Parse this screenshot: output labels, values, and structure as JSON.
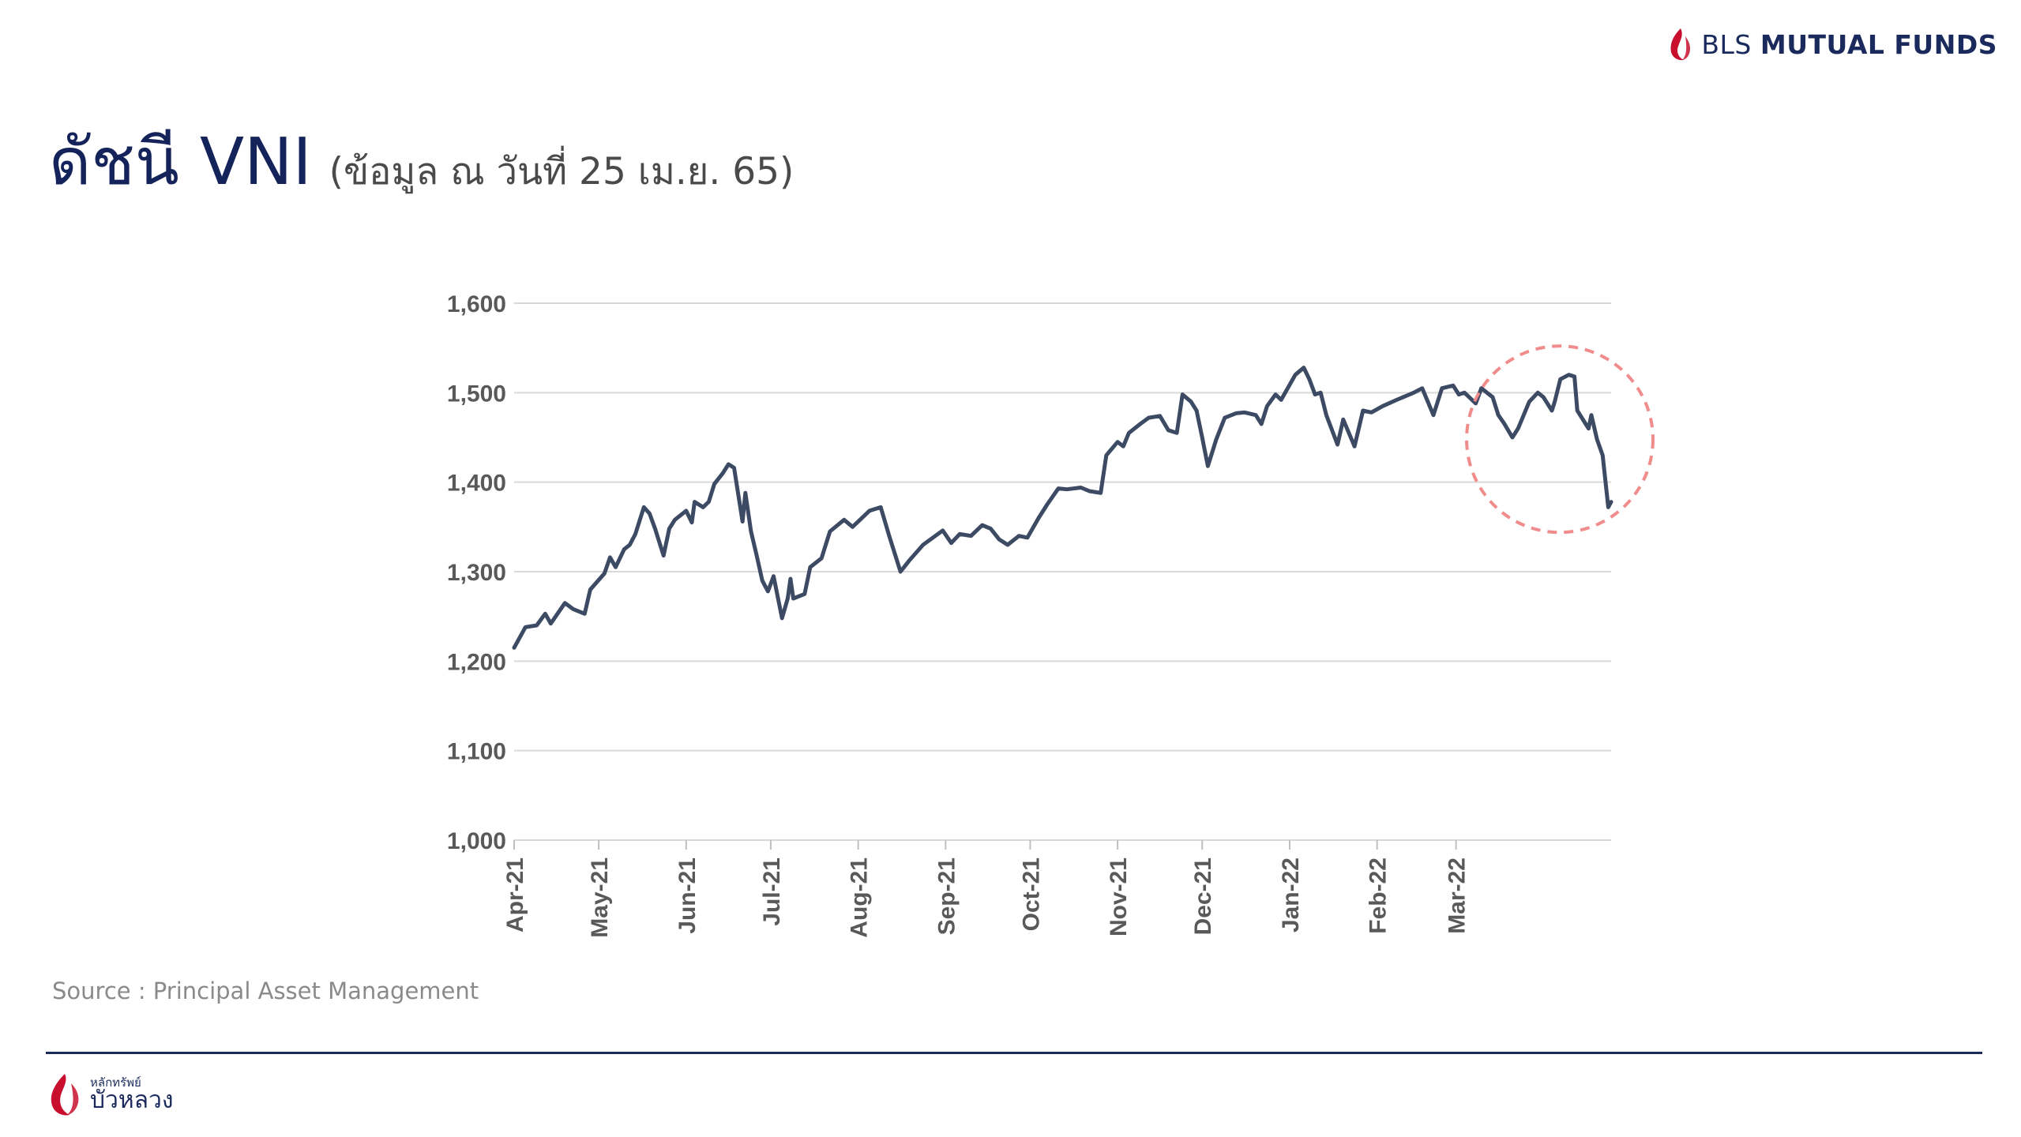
{
  "header": {
    "brand_light": "BLS",
    "brand_bold": "MUTUAL FUNDS",
    "title_main": "ดัชนี VNI",
    "title_sub": "(ข้อมูล ณ วันที่ 25 เม.ย. 65)"
  },
  "footer": {
    "source": "Source : Principal Asset Management",
    "logo_small": "หลักทรัพย์",
    "logo_big": "บัวหลวง"
  },
  "colors": {
    "brand_navy": "#1b2a5c",
    "brand_red": "#c8102e",
    "line": "#3d4a63",
    "highlight": "#f08c8c",
    "grid": "#d9d9d9"
  },
  "chart_data": {
    "type": "line",
    "ylim": [
      1000,
      1600
    ],
    "yticks": [
      1000,
      1100,
      1200,
      1300,
      1400,
      1500,
      1600
    ],
    "ytick_labels": [
      "1,000",
      "1,100",
      "1,200",
      "1,300",
      "1,400",
      "1,500",
      "1,600"
    ],
    "xtick_labels": [
      "Apr-21",
      "May-21",
      "Jun-21",
      "Jul-21",
      "Aug-21",
      "Sep-21",
      "Oct-21",
      "Nov-21",
      "Dec-21",
      "Jan-22",
      "Feb-22",
      "Mar-22"
    ],
    "x_range": [
      "2021-04-01",
      "2022-04-25"
    ],
    "grid": "horizontal",
    "annotation": "dashed circle highlighting late Mar-22 to Apr-22 decline",
    "series": [
      {
        "points": [
          [
            "2021-04-01",
            1215
          ],
          [
            "2021-04-05",
            1238
          ],
          [
            "2021-04-09",
            1240
          ],
          [
            "2021-04-12",
            1253
          ],
          [
            "2021-04-14",
            1242
          ],
          [
            "2021-04-19",
            1265
          ],
          [
            "2021-04-22",
            1258
          ],
          [
            "2021-04-26",
            1253
          ],
          [
            "2021-04-28",
            1280
          ],
          [
            "2021-05-03",
            1298
          ],
          [
            "2021-05-05",
            1316
          ],
          [
            "2021-05-07",
            1305
          ],
          [
            "2021-05-10",
            1325
          ],
          [
            "2021-05-12",
            1330
          ],
          [
            "2021-05-14",
            1342
          ],
          [
            "2021-05-17",
            1372
          ],
          [
            "2021-05-19",
            1365
          ],
          [
            "2021-05-21",
            1348
          ],
          [
            "2021-05-24",
            1318
          ],
          [
            "2021-05-26",
            1348
          ],
          [
            "2021-05-28",
            1358
          ],
          [
            "2021-06-01",
            1368
          ],
          [
            "2021-06-03",
            1355
          ],
          [
            "2021-06-04",
            1378
          ],
          [
            "2021-06-07",
            1372
          ],
          [
            "2021-06-09",
            1378
          ],
          [
            "2021-06-11",
            1398
          ],
          [
            "2021-06-14",
            1410
          ],
          [
            "2021-06-16",
            1420
          ],
          [
            "2021-06-18",
            1416
          ],
          [
            "2021-06-21",
            1356
          ],
          [
            "2021-06-22",
            1388
          ],
          [
            "2021-06-24",
            1345
          ],
          [
            "2021-06-26",
            1318
          ],
          [
            "2021-06-28",
            1290
          ],
          [
            "2021-06-30",
            1278
          ],
          [
            "2021-07-02",
            1295
          ],
          [
            "2021-07-05",
            1248
          ],
          [
            "2021-07-07",
            1270
          ],
          [
            "2021-07-08",
            1292
          ],
          [
            "2021-07-09",
            1270
          ],
          [
            "2021-07-13",
            1275
          ],
          [
            "2021-07-15",
            1305
          ],
          [
            "2021-07-19",
            1315
          ],
          [
            "2021-07-22",
            1345
          ],
          [
            "2021-07-27",
            1358
          ],
          [
            "2021-07-30",
            1350
          ],
          [
            "2021-08-05",
            1368
          ],
          [
            "2021-08-09",
            1372
          ],
          [
            "2021-08-12",
            1340
          ],
          [
            "2021-08-16",
            1300
          ],
          [
            "2021-08-19",
            1312
          ],
          [
            "2021-08-24",
            1330
          ],
          [
            "2021-08-31",
            1346
          ],
          [
            "2021-09-03",
            1332
          ],
          [
            "2021-09-06",
            1342
          ],
          [
            "2021-09-10",
            1340
          ],
          [
            "2021-09-14",
            1352
          ],
          [
            "2021-09-17",
            1348
          ],
          [
            "2021-09-20",
            1336
          ],
          [
            "2021-09-23",
            1330
          ],
          [
            "2021-09-27",
            1340
          ],
          [
            "2021-09-30",
            1338
          ],
          [
            "2021-10-04",
            1360
          ],
          [
            "2021-10-07",
            1375
          ],
          [
            "2021-10-11",
            1393
          ],
          [
            "2021-10-14",
            1392
          ],
          [
            "2021-10-19",
            1394
          ],
          [
            "2021-10-22",
            1390
          ],
          [
            "2021-10-26",
            1388
          ],
          [
            "2021-10-28",
            1430
          ],
          [
            "2021-11-01",
            1445
          ],
          [
            "2021-11-03",
            1440
          ],
          [
            "2021-11-05",
            1455
          ],
          [
            "2021-11-09",
            1465
          ],
          [
            "2021-11-12",
            1472
          ],
          [
            "2021-11-16",
            1474
          ],
          [
            "2021-11-19",
            1458
          ],
          [
            "2021-11-22",
            1455
          ],
          [
            "2021-11-24",
            1498
          ],
          [
            "2021-11-27",
            1490
          ],
          [
            "2021-11-29",
            1480
          ],
          [
            "2021-12-01",
            1450
          ],
          [
            "2021-12-03",
            1418
          ],
          [
            "2021-12-06",
            1448
          ],
          [
            "2021-12-09",
            1472
          ],
          [
            "2021-12-13",
            1477
          ],
          [
            "2021-12-16",
            1478
          ],
          [
            "2021-12-20",
            1475
          ],
          [
            "2021-12-22",
            1465
          ],
          [
            "2021-12-24",
            1485
          ],
          [
            "2021-12-27",
            1498
          ],
          [
            "2021-12-29",
            1492
          ],
          [
            "2022-01-03",
            1520
          ],
          [
            "2022-01-06",
            1528
          ],
          [
            "2022-01-08",
            1515
          ],
          [
            "2022-01-10",
            1498
          ],
          [
            "2022-01-12",
            1500
          ],
          [
            "2022-01-14",
            1475
          ],
          [
            "2022-01-18",
            1442
          ],
          [
            "2022-01-20",
            1470
          ],
          [
            "2022-01-24",
            1440
          ],
          [
            "2022-01-27",
            1480
          ],
          [
            "2022-01-30",
            1478
          ],
          [
            "2022-02-03",
            1485
          ],
          [
            "2022-02-08",
            1492
          ],
          [
            "2022-02-14",
            1500
          ],
          [
            "2022-02-17",
            1505
          ],
          [
            "2022-02-21",
            1475
          ],
          [
            "2022-02-24",
            1505
          ],
          [
            "2022-02-28",
            1508
          ],
          [
            "2022-03-02",
            1498
          ],
          [
            "2022-03-04",
            1500
          ],
          [
            "2022-03-08",
            1488
          ],
          [
            "2022-03-10",
            1505
          ],
          [
            "2022-03-14",
            1495
          ],
          [
            "2022-03-16",
            1475
          ],
          [
            "2022-03-18",
            1466
          ],
          [
            "2022-03-21",
            1450
          ],
          [
            "2022-03-23",
            1460
          ],
          [
            "2022-03-27",
            1490
          ],
          [
            "2022-03-30",
            1500
          ],
          [
            "2022-04-01",
            1495
          ],
          [
            "2022-04-04",
            1480
          ],
          [
            "2022-04-05",
            1490
          ],
          [
            "2022-04-07",
            1515
          ],
          [
            "2022-04-10",
            1520
          ],
          [
            "2022-04-12",
            1518
          ],
          [
            "2022-04-13",
            1480
          ],
          [
            "2022-04-17",
            1460
          ],
          [
            "2022-04-18",
            1475
          ],
          [
            "2022-04-20",
            1448
          ],
          [
            "2022-04-22",
            1430
          ],
          [
            "2022-04-24",
            1372
          ],
          [
            "2022-04-25",
            1378
          ]
        ]
      }
    ]
  }
}
